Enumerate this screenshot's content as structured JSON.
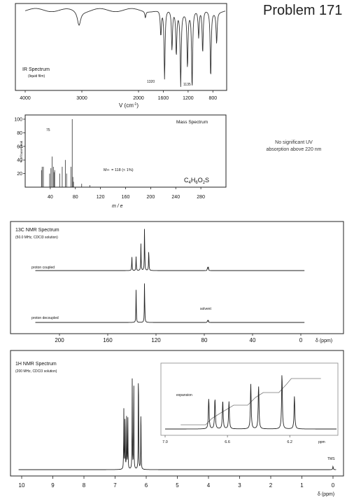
{
  "page": {
    "title": "Problem 171",
    "uv_note_line1": "No significant UV",
    "uv_note_line2": "absorption above 220 nm"
  },
  "chart_data": [
    {
      "id": "ir",
      "type": "line",
      "title": "IR Spectrum",
      "subtitle": "(liquid film)",
      "xlabel": "V (cm-1)",
      "xlim": [
        4000,
        600
      ],
      "x_ticks": [
        "4000",
        "3000",
        "2000",
        "1600",
        "1200",
        "800"
      ],
      "annotations": [
        "1320",
        "1135"
      ],
      "peaks_cm": [
        3050,
        1890,
        1640,
        1580,
        1460,
        1390,
        1320,
        1210,
        1135,
        1030,
        965,
        835,
        740
      ]
    },
    {
      "id": "ms",
      "type": "bar",
      "title": "Mass Spectrum",
      "xlabel": "m / e",
      "ylabel": "% of base peak",
      "xlim": [
        0,
        320
      ],
      "ylim": [
        0,
        100
      ],
      "x_ticks": [
        "40",
        "80",
        "120",
        "160",
        "200",
        "240",
        "280"
      ],
      "y_ticks": [
        "20",
        "40",
        "60",
        "80",
        "100"
      ],
      "base_peak_label": "75",
      "molecular_ion": "M+· = 118 (< 1%)",
      "formula": "C4H6O2S",
      "peaks": [
        {
          "mz": 26,
          "pct": 25
        },
        {
          "mz": 27,
          "pct": 30
        },
        {
          "mz": 29,
          "pct": 30
        },
        {
          "mz": 39,
          "pct": 20
        },
        {
          "mz": 41,
          "pct": 28
        },
        {
          "mz": 43,
          "pct": 45
        },
        {
          "mz": 45,
          "pct": 30
        },
        {
          "mz": 46,
          "pct": 22
        },
        {
          "mz": 47,
          "pct": 25
        },
        {
          "mz": 55,
          "pct": 20
        },
        {
          "mz": 59,
          "pct": 30
        },
        {
          "mz": 64,
          "pct": 40
        },
        {
          "mz": 66,
          "pct": 20
        },
        {
          "mz": 73,
          "pct": 30
        },
        {
          "mz": 75,
          "pct": 100
        },
        {
          "mz": 76,
          "pct": 15
        },
        {
          "mz": 77,
          "pct": 8
        },
        {
          "mz": 90,
          "pct": 5
        },
        {
          "mz": 103,
          "pct": 3
        }
      ]
    },
    {
      "id": "c13",
      "type": "line",
      "title": "13C NMR Spectrum",
      "subtitle": "(50.0 MHz, CDCl3 solution)",
      "xlabel": "δ (ppm)",
      "xlim": [
        220,
        0
      ],
      "x_ticks": [
        "200",
        "160",
        "120",
        "80",
        "40",
        "0"
      ],
      "trace_labels": [
        "proton coupled",
        "proton decoupled",
        "solvent"
      ],
      "decoupled_peaks": [
        {
          "ppm": 136.5,
          "h": 0.75
        },
        {
          "ppm": 129.5,
          "h": 1.0
        }
      ],
      "coupled_peaks": [
        {
          "ppm": 140,
          "h": 0.3
        },
        {
          "ppm": 136.5,
          "h": 0.3
        },
        {
          "ppm": 132.5,
          "h": 0.6
        },
        {
          "ppm": 129.5,
          "h": 1.0
        },
        {
          "ppm": 126,
          "h": 0.5
        }
      ],
      "solvent_ppm": 77
    },
    {
      "id": "h1",
      "type": "line",
      "title": "1H NMR Spectrum",
      "subtitle": "(200 MHz, CDCl3 solution)",
      "xlabel": "δ (ppm)",
      "xlim": [
        10,
        0
      ],
      "x_ticks": [
        "10",
        "9",
        "8",
        "7",
        "6",
        "5",
        "4",
        "3",
        "2",
        "1",
        "0"
      ],
      "tms_label": "TMS",
      "inset_label": "expansion",
      "inset_unit": "ppm",
      "inset_xlim": [
        7.0,
        5.9
      ],
      "inset_ticks": [
        "7.0",
        "6.6",
        "6.2"
      ],
      "peaks": [
        {
          "ppm": 6.72,
          "h": 0.55
        },
        {
          "ppm": 6.68,
          "h": 0.55
        },
        {
          "ppm": 6.63,
          "h": 0.52
        },
        {
          "ppm": 6.59,
          "h": 0.5
        },
        {
          "ppm": 6.45,
          "h": 0.82
        },
        {
          "ppm": 6.4,
          "h": 0.78
        },
        {
          "ppm": 6.25,
          "h": 1.0
        },
        {
          "ppm": 6.17,
          "h": 0.6
        }
      ]
    }
  ]
}
